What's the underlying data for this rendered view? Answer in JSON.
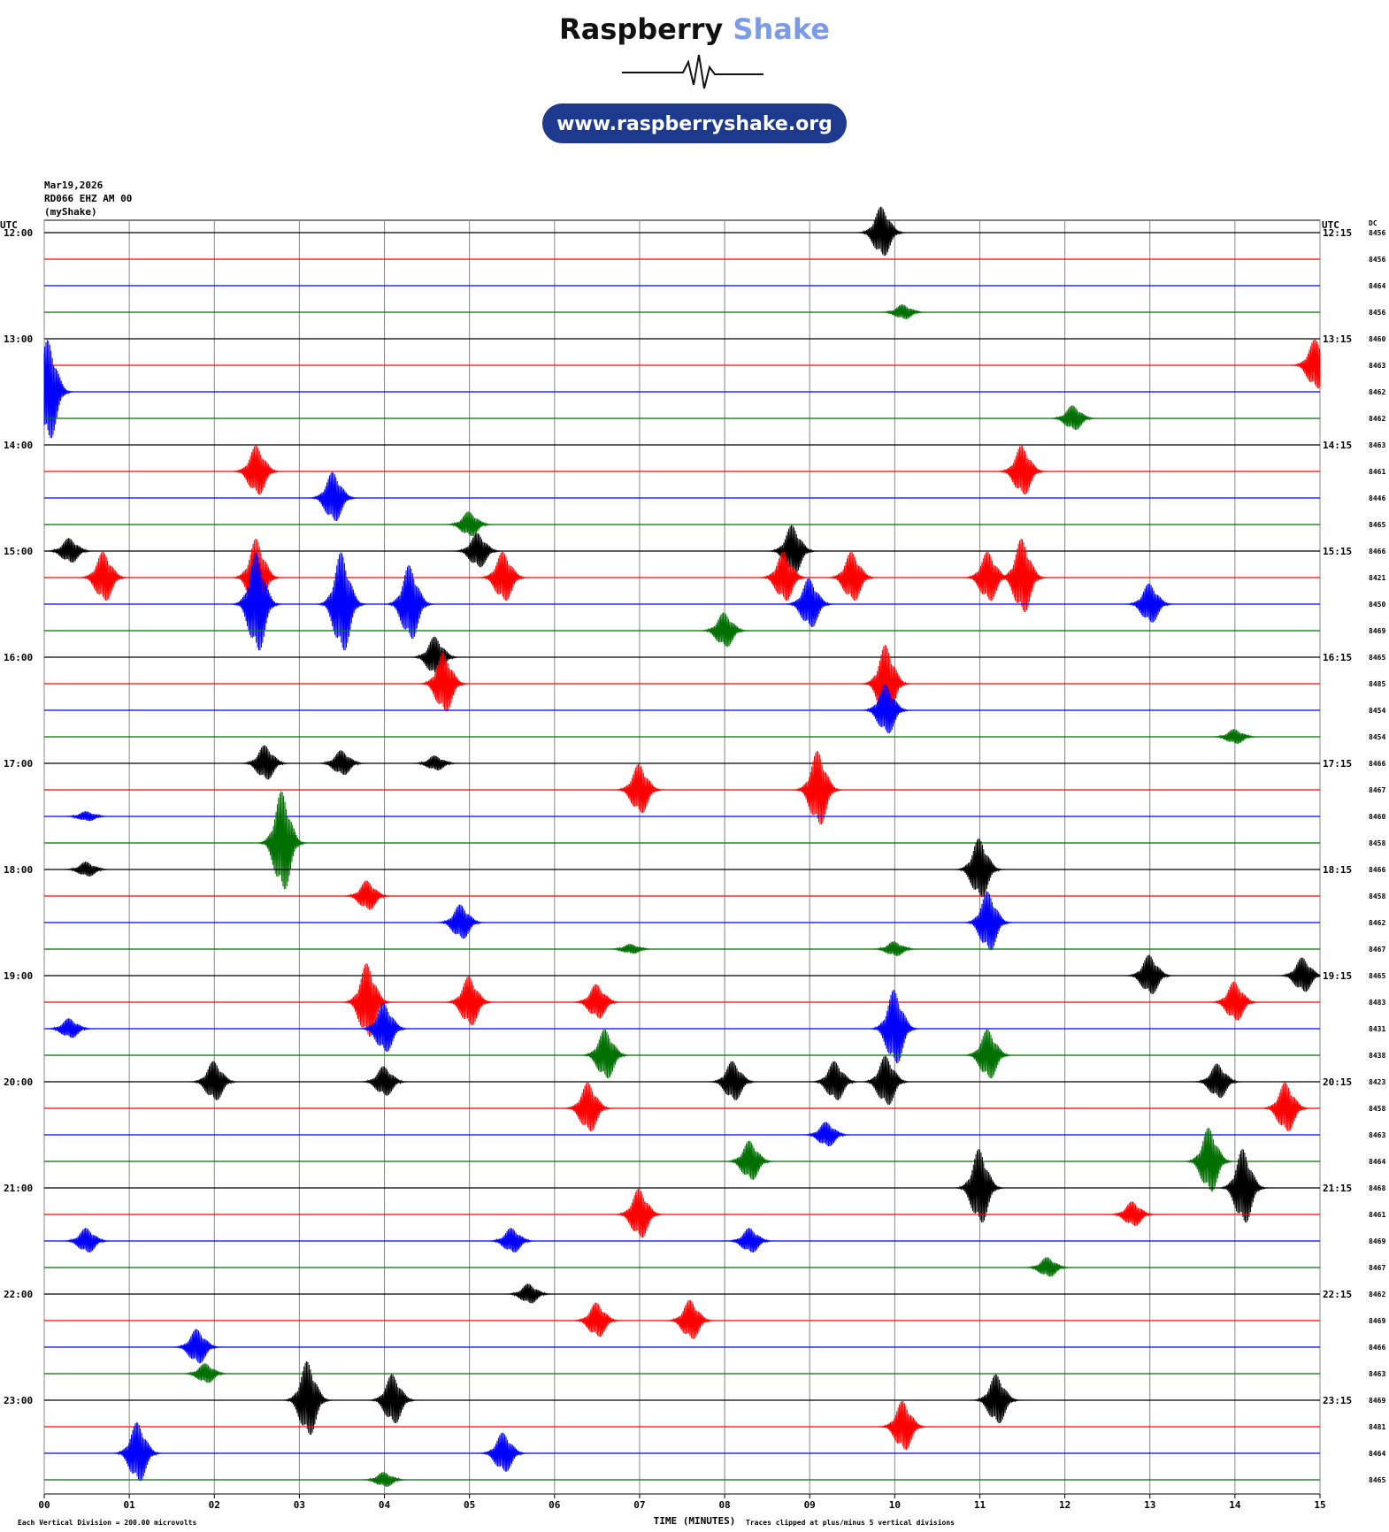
{
  "chart_data": {
    "type": "helicorder",
    "logo": {
      "brand1": "Raspberry",
      "brand2": "Shake",
      "url": "www.raspberryshake.org"
    },
    "header": {
      "date": "Mar19,2026",
      "station": "RD066 EHZ AM 00",
      "network": "(myShake)"
    },
    "utc_left": "UTC",
    "utc_right": "UTC",
    "dc_label": "DC",
    "colors": [
      "#000000",
      "#ff0000",
      "#0000ff",
      "#007000"
    ],
    "xlim": [
      0,
      15
    ],
    "xticks": [
      {
        "value": 0,
        "label": "00"
      },
      {
        "value": 1,
        "label": "01"
      },
      {
        "value": 2,
        "label": "02"
      },
      {
        "value": 3,
        "label": "03"
      },
      {
        "value": 4,
        "label": "04"
      },
      {
        "value": 5,
        "label": "05"
      },
      {
        "value": 6,
        "label": "06"
      },
      {
        "value": 7,
        "label": "07"
      },
      {
        "value": 8,
        "label": "08"
      },
      {
        "value": 9,
        "label": "09"
      },
      {
        "value": 10,
        "label": "10"
      },
      {
        "value": 11,
        "label": "11"
      },
      {
        "value": 12,
        "label": "12"
      },
      {
        "value": 13,
        "label": "13"
      },
      {
        "value": 14,
        "label": "14"
      },
      {
        "value": 15,
        "label": "15"
      }
    ],
    "x_label": "TIME (MINUTES)",
    "note_left": "Each Vertical Division =  200.00 microvolts",
    "note_right": "Traces clipped at plus/minus 5 vertical divisions",
    "rows": [
      {
        "left": "12:00",
        "right": "12:15",
        "dc": "8456",
        "events": [
          [
            9.85,
            1.0
          ]
        ]
      },
      {
        "left": null,
        "right": null,
        "dc": "8456",
        "events": []
      },
      {
        "left": null,
        "right": null,
        "dc": "8464",
        "events": []
      },
      {
        "left": null,
        "right": null,
        "dc": "8456",
        "events": [
          [
            10.1,
            0.3
          ]
        ]
      },
      {
        "left": "13:00",
        "right": "13:15",
        "dc": "8460",
        "events": []
      },
      {
        "left": null,
        "right": null,
        "dc": "8463",
        "events": [
          [
            14.95,
            1.0
          ]
        ]
      },
      {
        "left": null,
        "right": null,
        "dc": "8462",
        "events": [
          [
            0.05,
            2.0
          ]
        ]
      },
      {
        "left": null,
        "right": null,
        "dc": "8462",
        "events": [
          [
            12.1,
            0.5
          ]
        ]
      },
      {
        "left": "14:00",
        "right": "14:15",
        "dc": "8463",
        "events": []
      },
      {
        "left": null,
        "right": null,
        "dc": "8461",
        "events": [
          [
            2.5,
            1.0
          ],
          [
            11.5,
            1.0
          ]
        ]
      },
      {
        "left": null,
        "right": null,
        "dc": "8446",
        "events": [
          [
            3.4,
            1.0
          ]
        ]
      },
      {
        "left": null,
        "right": null,
        "dc": "8465",
        "events": [
          [
            5.0,
            0.5
          ]
        ]
      },
      {
        "left": "15:00",
        "right": "15:15",
        "dc": "8466",
        "events": [
          [
            0.3,
            0.5
          ],
          [
            5.1,
            0.7
          ],
          [
            8.8,
            1.0
          ]
        ]
      },
      {
        "left": null,
        "right": null,
        "dc": "8421",
        "events": [
          [
            0.7,
            1.0
          ],
          [
            2.5,
            1.5
          ],
          [
            5.4,
            1.0
          ],
          [
            8.7,
            1.0
          ],
          [
            9.5,
            1.0
          ],
          [
            11.1,
            1.0
          ],
          [
            11.5,
            1.5
          ]
        ]
      },
      {
        "left": null,
        "right": null,
        "dc": "8450",
        "events": [
          [
            2.5,
            2.0
          ],
          [
            3.5,
            2.0
          ],
          [
            4.3,
            1.5
          ],
          [
            9.0,
            1.0
          ],
          [
            13.0,
            0.8
          ]
        ]
      },
      {
        "left": null,
        "right": null,
        "dc": "8469",
        "events": [
          [
            8.0,
            0.7
          ]
        ]
      },
      {
        "left": "16:00",
        "right": "16:15",
        "dc": "8465",
        "events": [
          [
            4.6,
            0.8
          ]
        ]
      },
      {
        "left": null,
        "right": null,
        "dc": "8485",
        "events": [
          [
            4.7,
            1.2
          ],
          [
            9.9,
            1.5
          ]
        ]
      },
      {
        "left": null,
        "right": null,
        "dc": "8454",
        "events": [
          [
            9.9,
            1.0
          ]
        ]
      },
      {
        "left": null,
        "right": null,
        "dc": "8454",
        "events": [
          [
            14.0,
            0.3
          ]
        ]
      },
      {
        "left": "17:00",
        "right": "17:15",
        "dc": "8466",
        "events": [
          [
            2.6,
            0.7
          ],
          [
            3.5,
            0.5
          ],
          [
            4.6,
            0.3
          ]
        ]
      },
      {
        "left": null,
        "right": null,
        "dc": "8467",
        "events": [
          [
            7.0,
            1.0
          ],
          [
            9.1,
            1.5
          ]
        ]
      },
      {
        "left": null,
        "right": null,
        "dc": "8460",
        "events": [
          [
            0.5,
            0.2
          ]
        ]
      },
      {
        "left": null,
        "right": null,
        "dc": "8458",
        "events": [
          [
            2.8,
            2.0
          ]
        ]
      },
      {
        "left": "18:00",
        "right": "18:15",
        "dc": "8466",
        "events": [
          [
            0.5,
            0.3
          ],
          [
            11.0,
            1.2
          ]
        ]
      },
      {
        "left": null,
        "right": null,
        "dc": "8458",
        "events": [
          [
            3.8,
            0.6
          ]
        ]
      },
      {
        "left": null,
        "right": null,
        "dc": "8462",
        "events": [
          [
            4.9,
            0.7
          ],
          [
            11.1,
            1.2
          ]
        ]
      },
      {
        "left": null,
        "right": null,
        "dc": "8467",
        "events": [
          [
            6.9,
            0.2
          ],
          [
            10.0,
            0.3
          ]
        ]
      },
      {
        "left": "19:00",
        "right": "19:15",
        "dc": "8465",
        "events": [
          [
            13.0,
            0.8
          ],
          [
            14.8,
            0.7
          ]
        ]
      },
      {
        "left": null,
        "right": null,
        "dc": "8483",
        "events": [
          [
            3.8,
            1.5
          ],
          [
            5.0,
            1.0
          ],
          [
            6.5,
            0.7
          ],
          [
            14.0,
            0.8
          ]
        ]
      },
      {
        "left": null,
        "right": null,
        "dc": "8431",
        "events": [
          [
            0.3,
            0.4
          ],
          [
            4.0,
            1.0
          ],
          [
            10.0,
            1.5
          ]
        ]
      },
      {
        "left": null,
        "right": null,
        "dc": "8438",
        "events": [
          [
            6.6,
            1.0
          ],
          [
            11.1,
            1.0
          ]
        ]
      },
      {
        "left": "20:00",
        "right": "20:15",
        "dc": "8423",
        "events": [
          [
            2.0,
            0.8
          ],
          [
            4.0,
            0.6
          ],
          [
            8.1,
            0.8
          ],
          [
            9.3,
            0.8
          ],
          [
            9.9,
            1.0
          ],
          [
            13.8,
            0.7
          ]
        ]
      },
      {
        "left": null,
        "right": null,
        "dc": "8458",
        "events": [
          [
            6.4,
            1.0
          ],
          [
            14.6,
            1.0
          ]
        ]
      },
      {
        "left": null,
        "right": null,
        "dc": "8463",
        "events": [
          [
            9.2,
            0.5
          ]
        ]
      },
      {
        "left": null,
        "right": null,
        "dc": "8464",
        "events": [
          [
            8.3,
            0.8
          ],
          [
            13.7,
            1.3
          ]
        ]
      },
      {
        "left": "21:00",
        "right": "21:15",
        "dc": "8468",
        "events": [
          [
            11.0,
            1.5
          ],
          [
            14.1,
            1.5
          ]
        ]
      },
      {
        "left": null,
        "right": null,
        "dc": "8461",
        "events": [
          [
            7.0,
            1.0
          ],
          [
            12.8,
            0.5
          ]
        ]
      },
      {
        "left": null,
        "right": null,
        "dc": "8469",
        "events": [
          [
            0.5,
            0.5
          ],
          [
            5.5,
            0.5
          ],
          [
            8.3,
            0.5
          ]
        ]
      },
      {
        "left": null,
        "right": null,
        "dc": "8467",
        "events": [
          [
            11.8,
            0.4
          ]
        ]
      },
      {
        "left": "22:00",
        "right": "22:15",
        "dc": "8462",
        "events": [
          [
            5.7,
            0.4
          ]
        ]
      },
      {
        "left": null,
        "right": null,
        "dc": "8469",
        "events": [
          [
            6.5,
            0.7
          ],
          [
            7.6,
            0.8
          ]
        ]
      },
      {
        "left": null,
        "right": null,
        "dc": "8466",
        "events": [
          [
            1.8,
            0.7
          ]
        ]
      },
      {
        "left": null,
        "right": null,
        "dc": "8463",
        "events": [
          [
            1.9,
            0.4
          ]
        ]
      },
      {
        "left": "23:00",
        "right": "23:15",
        "dc": "8469",
        "events": [
          [
            3.1,
            1.5
          ],
          [
            4.1,
            1.0
          ],
          [
            11.2,
            1.0
          ]
        ]
      },
      {
        "left": null,
        "right": null,
        "dc": "8481",
        "events": [
          [
            10.1,
            1.0
          ]
        ]
      },
      {
        "left": null,
        "right": null,
        "dc": "8464",
        "events": [
          [
            1.1,
            1.2
          ],
          [
            5.4,
            0.8
          ]
        ]
      },
      {
        "left": null,
        "right": null,
        "dc": "8465",
        "events": [
          [
            4.0,
            0.3
          ]
        ]
      }
    ]
  }
}
